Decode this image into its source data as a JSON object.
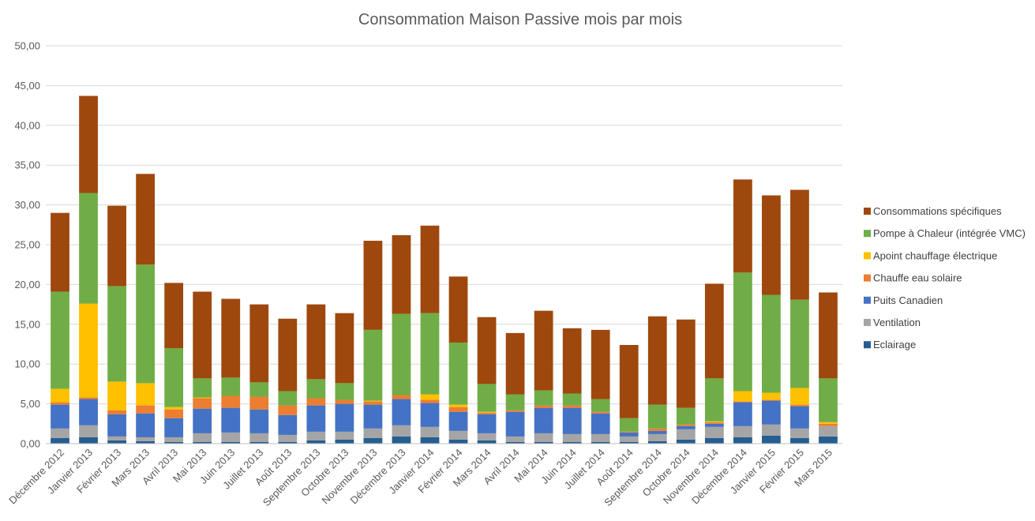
{
  "chart_data": {
    "type": "bar",
    "stacked": true,
    "title": "Consommation Maison Passive mois par mois",
    "xlabel": "",
    "ylabel": "",
    "ylim": [
      0,
      50
    ],
    "yticks": [
      "0,00",
      "5,00",
      "10,00",
      "15,00",
      "20,00",
      "25,00",
      "30,00",
      "35,00",
      "40,00",
      "45,00",
      "50,00"
    ],
    "grid": true,
    "legend_position": "right",
    "categories": [
      "Décembre 2012",
      "Janvier 2013",
      "Février 2013",
      "Mars 2013",
      "Avril 2013",
      "Mai 2013",
      "Juin 2013",
      "Juillet 2013",
      "Août 2013",
      "Septembre 2013",
      "Octobre 2013",
      "Novembre 2013",
      "Décembre 2013",
      "Janvier 2014",
      "Février 2014",
      "Mars 2014",
      "Avril 2014",
      "Mai 2014",
      "Juin 2014",
      "Juillet 2014",
      "Août 2014",
      "Septembre 2014",
      "Octobre 2014",
      "Novembre 2014",
      "Décembre 2014",
      "Janvier 2015",
      "Février 2015",
      "Mars 2015"
    ],
    "series": [
      {
        "name": "Eclairage",
        "color": "#255E91",
        "values": [
          0.7,
          0.8,
          0.4,
          0.3,
          0.2,
          0.2,
          0.2,
          0.2,
          0.2,
          0.4,
          0.5,
          0.7,
          0.9,
          0.8,
          0.5,
          0.4,
          0.2,
          0.2,
          0.2,
          0.2,
          0.2,
          0.3,
          0.5,
          0.7,
          0.8,
          1.0,
          0.7,
          0.9
        ]
      },
      {
        "name": "Ventilation",
        "color": "#A5A5A5",
        "values": [
          1.2,
          1.5,
          0.5,
          0.5,
          0.6,
          1.1,
          1.2,
          1.1,
          0.9,
          1.1,
          1.0,
          1.2,
          1.4,
          1.3,
          1.1,
          0.9,
          0.7,
          1.1,
          1.0,
          1.0,
          0.7,
          0.9,
          1.3,
          1.4,
          1.4,
          1.4,
          1.2,
          1.3
        ]
      },
      {
        "name": "Puits Canadien",
        "color": "#4472C4",
        "values": [
          3.0,
          3.3,
          2.8,
          3.0,
          2.4,
          3.1,
          3.1,
          3.0,
          2.5,
          3.3,
          3.5,
          3.0,
          3.3,
          3.0,
          2.4,
          2.4,
          3.1,
          3.2,
          3.3,
          2.6,
          0.5,
          0.4,
          0.4,
          0.4,
          3.0,
          3.0,
          2.8,
          0.0
        ]
      },
      {
        "name": "Chauffe eau solaire",
        "color": "#ED7D31",
        "values": [
          0.3,
          0.2,
          0.5,
          1.0,
          1.1,
          1.3,
          1.5,
          1.6,
          1.2,
          0.9,
          0.5,
          0.4,
          0.5,
          0.4,
          0.6,
          0.2,
          0.2,
          0.3,
          0.3,
          0.2,
          0.1,
          0.3,
          0.2,
          0.2,
          0.1,
          0.1,
          0.2,
          0.3
        ]
      },
      {
        "name": "Apoint chauffage électrique",
        "color": "#FFC000",
        "values": [
          1.7,
          11.8,
          3.6,
          2.8,
          0.3,
          0.1,
          0.0,
          0.0,
          0.0,
          0.0,
          0.0,
          0.1,
          0.0,
          0.7,
          0.3,
          0.1,
          0.0,
          0.0,
          0.0,
          0.0,
          0.0,
          0.0,
          0.0,
          0.1,
          1.3,
          0.9,
          2.1,
          0.2
        ]
      },
      {
        "name": "Pompe à Chaleur (intégrée VMC)",
        "color": "#70AD47",
        "values": [
          12.2,
          13.9,
          12.0,
          14.9,
          7.4,
          2.4,
          2.3,
          1.8,
          1.8,
          2.4,
          2.1,
          8.9,
          10.2,
          10.2,
          7.8,
          3.5,
          2.0,
          1.9,
          1.5,
          1.6,
          1.7,
          3.0,
          2.1,
          5.4,
          14.9,
          12.3,
          11.1,
          5.5
        ]
      },
      {
        "name": "Consommations spécifiques",
        "color": "#9E480E",
        "values": [
          9.9,
          12.2,
          10.1,
          11.4,
          8.2,
          10.9,
          9.9,
          9.8,
          9.1,
          9.4,
          8.8,
          11.2,
          9.9,
          11.0,
          8.3,
          8.4,
          7.7,
          10.0,
          8.2,
          8.7,
          9.2,
          11.1,
          11.1,
          11.9,
          11.7,
          12.5,
          13.8,
          10.8
        ]
      }
    ]
  }
}
